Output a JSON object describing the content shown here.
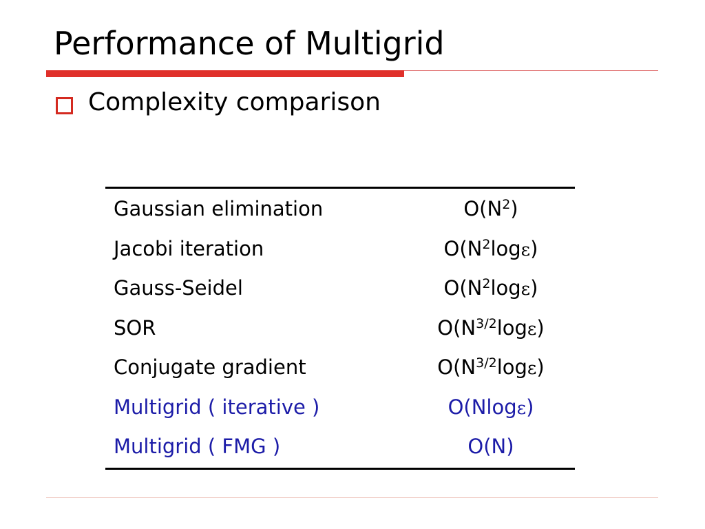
{
  "header": {
    "title": "Performance of Multigrid"
  },
  "bullet": "Complexity comparison",
  "table": {
    "rows": [
      {
        "method": "Gaussian elimination",
        "complexity": [
          {
            "text": "O(N"
          },
          {
            "sup": "2"
          },
          {
            "text": ")"
          }
        ]
      },
      {
        "method": "Jacobi iteration",
        "complexity": [
          {
            "text": "O(N"
          },
          {
            "sup": "2"
          },
          {
            "text": "log"
          },
          {
            "symbol": "ε"
          },
          {
            "text": ")"
          }
        ]
      },
      {
        "method": "Gauss-Seidel",
        "complexity": [
          {
            "text": "O(N"
          },
          {
            "sup": "2"
          },
          {
            "text": "log"
          },
          {
            "symbol": "ε"
          },
          {
            "text": ")"
          }
        ]
      },
      {
        "method": "SOR",
        "complexity": [
          {
            "text": "O(N"
          },
          {
            "sup": "3/2"
          },
          {
            "text": "log"
          },
          {
            "symbol": "ε"
          },
          {
            "text": ")"
          }
        ]
      },
      {
        "method": "Conjugate gradient",
        "complexity": [
          {
            "text": "O(N"
          },
          {
            "sup": "3/2"
          },
          {
            "text": "log"
          },
          {
            "symbol": "ε"
          },
          {
            "text": ")"
          }
        ]
      },
      {
        "method": "Multigrid ( iterative )",
        "complexity": [
          {
            "text": "O(Nlog"
          },
          {
            "symbol": "ε"
          },
          {
            "text": ")"
          }
        ],
        "highlight": true
      },
      {
        "method": "Multigrid ( FMG )",
        "complexity": [
          {
            "text": "O(N)"
          }
        ],
        "highlight": true
      }
    ]
  }
}
